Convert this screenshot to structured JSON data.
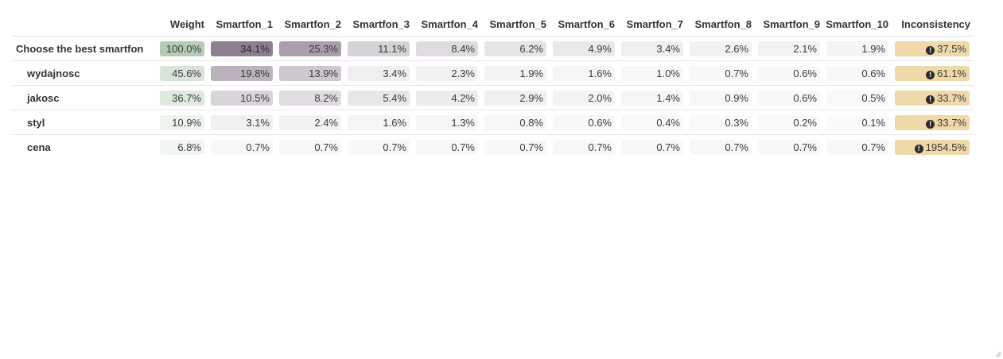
{
  "colors": {
    "weight_base": "#6a9a6a",
    "alt_base": "#6e5a72",
    "inconsistency_bg": "#efd9a9"
  },
  "icons": {
    "inconsistency_warning": "exclamation-circle-icon",
    "resize": "resize-grip-icon"
  },
  "header": {
    "weight": "Weight",
    "alternatives": [
      "Smartfon_1",
      "Smartfon_2",
      "Smartfon_3",
      "Smartfon_4",
      "Smartfon_5",
      "Smartfon_6",
      "Smartfon_7",
      "Smartfon_8",
      "Smartfon_9",
      "Smartfon_10"
    ],
    "inconsistency": "Inconsistency"
  },
  "rows": [
    {
      "label": "Choose the best smartfon",
      "sub": false,
      "weight": "100.0%",
      "weight_val": 1.0,
      "alts": [
        "34.1%",
        "25.3%",
        "11.1%",
        "8.4%",
        "6.2%",
        "4.9%",
        "3.4%",
        "2.6%",
        "2.1%",
        "1.9%"
      ],
      "alt_vals": [
        0.341,
        0.253,
        0.111,
        0.084,
        0.062,
        0.049,
        0.034,
        0.026,
        0.021,
        0.019
      ],
      "inconsistency": "37.5%"
    },
    {
      "label": "wydajnosc",
      "sub": true,
      "weight": "45.6%",
      "weight_val": 0.456,
      "alts": [
        "19.8%",
        "13.9%",
        "3.4%",
        "2.3%",
        "1.9%",
        "1.6%",
        "1.0%",
        "0.7%",
        "0.6%",
        "0.6%"
      ],
      "alt_vals": [
        0.198,
        0.139,
        0.034,
        0.023,
        0.019,
        0.016,
        0.01,
        0.007,
        0.006,
        0.006
      ],
      "inconsistency": "61.1%"
    },
    {
      "label": "jakosc",
      "sub": true,
      "weight": "36.7%",
      "weight_val": 0.367,
      "alts": [
        "10.5%",
        "8.2%",
        "5.4%",
        "4.2%",
        "2.9%",
        "2.0%",
        "1.4%",
        "0.9%",
        "0.6%",
        "0.5%"
      ],
      "alt_vals": [
        0.105,
        0.082,
        0.054,
        0.042,
        0.029,
        0.02,
        0.014,
        0.009,
        0.006,
        0.005
      ],
      "inconsistency": "33.7%"
    },
    {
      "label": "styl",
      "sub": true,
      "weight": "10.9%",
      "weight_val": 0.109,
      "alts": [
        "3.1%",
        "2.4%",
        "1.6%",
        "1.3%",
        "0.8%",
        "0.6%",
        "0.4%",
        "0.3%",
        "0.2%",
        "0.1%"
      ],
      "alt_vals": [
        0.031,
        0.024,
        0.016,
        0.013,
        0.008,
        0.006,
        0.004,
        0.003,
        0.002,
        0.001
      ],
      "inconsistency": "33.7%"
    },
    {
      "label": "cena",
      "sub": true,
      "weight": "6.8%",
      "weight_val": 0.068,
      "alts": [
        "0.7%",
        "0.7%",
        "0.7%",
        "0.7%",
        "0.7%",
        "0.7%",
        "0.7%",
        "0.7%",
        "0.7%",
        "0.7%"
      ],
      "alt_vals": [
        0.007,
        0.007,
        0.007,
        0.007,
        0.007,
        0.007,
        0.007,
        0.007,
        0.007,
        0.007
      ],
      "inconsistency": "1954.5%"
    }
  ]
}
